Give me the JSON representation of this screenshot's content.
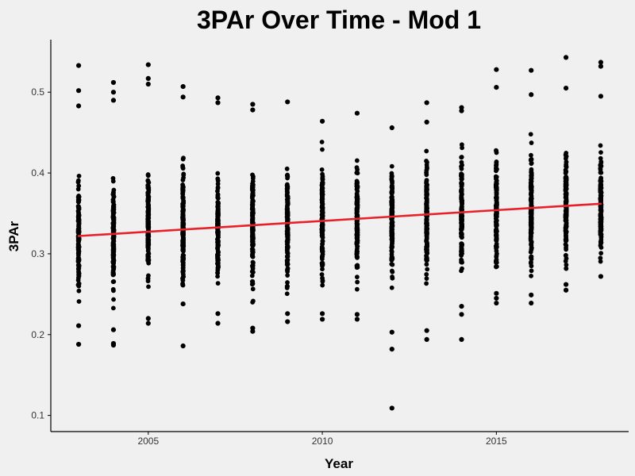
{
  "chart_data": {
    "type": "scatter",
    "title": "3PAr Over Time - Mod 1",
    "xlabel": "Year",
    "ylabel": "3PAr",
    "xlim": [
      2002.2,
      2018.8
    ],
    "ylim": [
      0.08,
      0.565
    ],
    "x_ticks": [
      2005,
      2010,
      2015
    ],
    "y_ticks": [
      0.1,
      0.2,
      0.3,
      0.4,
      0.5
    ],
    "grid": false,
    "legend": "none",
    "point_color": "#000000",
    "line_color": "#e8202a",
    "background_color": "#f0f0f0",
    "trend_line": {
      "x": [
        2003,
        2018
      ],
      "y": [
        0.322,
        0.362
      ]
    },
    "series": [
      {
        "x": 2003,
        "min": 0.188,
        "max": 0.533,
        "center": 0.322,
        "outliers": [
          0.188,
          0.211,
          0.483,
          0.502,
          0.533
        ]
      },
      {
        "x": 2004,
        "min": 0.187,
        "max": 0.512,
        "center": 0.325,
        "outliers": [
          0.187,
          0.189,
          0.206,
          0.49,
          0.5,
          0.512
        ]
      },
      {
        "x": 2005,
        "min": 0.214,
        "max": 0.534,
        "center": 0.328,
        "outliers": [
          0.214,
          0.22,
          0.51,
          0.517,
          0.534
        ]
      },
      {
        "x": 2006,
        "min": 0.186,
        "max": 0.507,
        "center": 0.33,
        "outliers": [
          0.186,
          0.238,
          0.494,
          0.507
        ]
      },
      {
        "x": 2007,
        "min": 0.214,
        "max": 0.493,
        "center": 0.332,
        "outliers": [
          0.214,
          0.226,
          0.487,
          0.493
        ]
      },
      {
        "x": 2008,
        "min": 0.204,
        "max": 0.485,
        "center": 0.334,
        "outliers": [
          0.204,
          0.208,
          0.478,
          0.485
        ]
      },
      {
        "x": 2009,
        "min": 0.216,
        "max": 0.488,
        "center": 0.336,
        "outliers": [
          0.216,
          0.226,
          0.488
        ]
      },
      {
        "x": 2010,
        "min": 0.219,
        "max": 0.464,
        "center": 0.338,
        "outliers": [
          0.219,
          0.226,
          0.464
        ]
      },
      {
        "x": 2011,
        "min": 0.219,
        "max": 0.474,
        "center": 0.341,
        "outliers": [
          0.219,
          0.225,
          0.474
        ]
      },
      {
        "x": 2012,
        "min": 0.109,
        "max": 0.456,
        "center": 0.344,
        "outliers": [
          0.109,
          0.182,
          0.203,
          0.456
        ]
      },
      {
        "x": 2013,
        "min": 0.194,
        "max": 0.487,
        "center": 0.347,
        "outliers": [
          0.194,
          0.205,
          0.463,
          0.487
        ]
      },
      {
        "x": 2014,
        "min": 0.194,
        "max": 0.481,
        "center": 0.35,
        "outliers": [
          0.194,
          0.225,
          0.235,
          0.477,
          0.481
        ]
      },
      {
        "x": 2015,
        "min": 0.239,
        "max": 0.528,
        "center": 0.353,
        "outliers": [
          0.239,
          0.245,
          0.251,
          0.506,
          0.528
        ]
      },
      {
        "x": 2016,
        "min": 0.239,
        "max": 0.527,
        "center": 0.356,
        "outliers": [
          0.239,
          0.249,
          0.497,
          0.527
        ]
      },
      {
        "x": 2017,
        "min": 0.255,
        "max": 0.543,
        "center": 0.359,
        "outliers": [
          0.255,
          0.262,
          0.505,
          0.543
        ]
      },
      {
        "x": 2018,
        "min": 0.272,
        "max": 0.537,
        "center": 0.362,
        "outliers": [
          0.272,
          0.495,
          0.532,
          0.537
        ]
      }
    ]
  }
}
